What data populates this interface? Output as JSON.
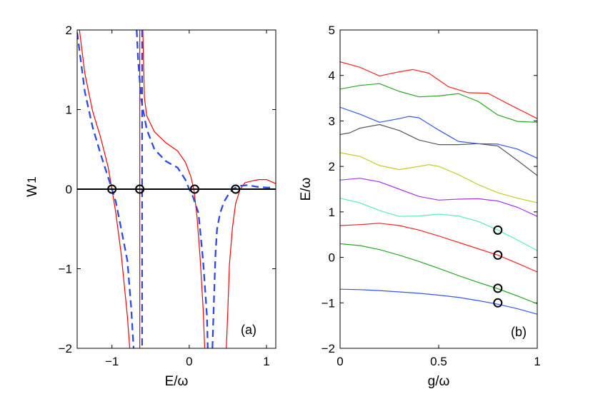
{
  "chart_data": [
    {
      "type": "line",
      "panel_label": "(a)",
      "xlabel": "E/ω",
      "ylabel": "W",
      "ylabel_sub": "1",
      "xlim": [
        -1.45,
        1.12
      ],
      "ylim": [
        -2,
        2
      ],
      "xticks": [
        -1,
        0,
        1
      ],
      "xtick_labels": [
        "−1",
        "0",
        "1"
      ],
      "yticks": [
        -2,
        -1,
        0,
        1,
        2
      ],
      "ytick_labels": [
        "−2",
        "−1",
        "0",
        "1",
        "2"
      ],
      "series": [
        {
          "name": "solid",
          "color": "#ff0000",
          "style": "solid",
          "segments": [
            [
              [
                -1.42,
                2
              ],
              [
                -1.35,
                1.45
              ],
              [
                -1.25,
                0.98
              ],
              [
                -1.15,
                0.66
              ],
              [
                -1.05,
                0.28
              ],
              [
                -1.0,
                0.0
              ],
              [
                -0.95,
                -0.3
              ],
              [
                -0.88,
                -0.82
              ],
              [
                -0.8,
                -1.6
              ],
              [
                -0.77,
                -2
              ]
            ],
            [
              [
                -0.6,
                2
              ],
              [
                -0.58,
                1.15
              ],
              [
                -0.55,
                0.92
              ],
              [
                -0.45,
                0.72
              ],
              [
                -0.3,
                0.58
              ],
              [
                -0.15,
                0.48
              ],
              [
                -0.05,
                0.34
              ],
              [
                0.02,
                0.16
              ],
              [
                0.06,
                0.0
              ],
              [
                0.1,
                -0.34
              ],
              [
                0.14,
                -0.85
              ],
              [
                0.18,
                -1.5
              ],
              [
                0.2,
                -2
              ]
            ],
            [
              [
                0.48,
                -2
              ],
              [
                0.5,
                -1.52
              ],
              [
                0.52,
                -0.95
              ],
              [
                0.56,
                -0.48
              ],
              [
                0.6,
                -0.18
              ],
              [
                0.66,
                0.0
              ],
              [
                0.72,
                0.08
              ],
              [
                0.8,
                0.1
              ],
              [
                0.9,
                0.12
              ],
              [
                1.0,
                0.12
              ],
              [
                1.12,
                0.07
              ]
            ]
          ]
        },
        {
          "name": "dashed",
          "color": "#2a4bea",
          "style": "dashed",
          "segments": [
            [
              [
                -1.45,
                1.97
              ],
              [
                -1.35,
                1.22
              ],
              [
                -1.25,
                0.78
              ],
              [
                -1.15,
                0.45
              ],
              [
                -1.05,
                0.15
              ],
              [
                -1.0,
                0.0
              ],
              [
                -0.95,
                -0.16
              ],
              [
                -0.88,
                -0.5
              ],
              [
                -0.8,
                -0.9
              ],
              [
                -0.75,
                -1.5
              ],
              [
                -0.72,
                -2
              ]
            ],
            [
              [
                -0.68,
                2
              ],
              [
                -0.66,
                1.6
              ],
              [
                -0.62,
                1.12
              ],
              [
                -0.55,
                0.75
              ],
              [
                -0.45,
                0.5
              ],
              [
                -0.3,
                0.35
              ],
              [
                -0.15,
                0.27
              ],
              [
                -0.05,
                0.12
              ],
              [
                0.0,
                0.0
              ],
              [
                0.05,
                -0.1
              ],
              [
                0.12,
                -0.3
              ],
              [
                0.18,
                -0.9
              ],
              [
                0.23,
                -1.6
              ],
              [
                0.24,
                -2
              ]
            ],
            [
              [
                0.3,
                -2
              ],
              [
                0.32,
                -1.38
              ],
              [
                0.34,
                -0.82
              ],
              [
                0.36,
                -0.5
              ],
              [
                0.4,
                -0.3
              ],
              [
                0.45,
                -0.16
              ],
              [
                0.5,
                -0.08
              ],
              [
                0.56,
                0.0
              ],
              [
                0.65,
                0.04
              ],
              [
                0.75,
                0.05
              ],
              [
                0.88,
                0.03
              ],
              [
                1.0,
                0.02
              ],
              [
                1.1,
                0.02
              ]
            ]
          ]
        },
        {
          "name": "solid-vertical",
          "color": "#ff0000",
          "style": "solid",
          "segments": [
            [
              [
                -0.64,
                2
              ],
              [
                -0.64,
                -2
              ]
            ]
          ]
        },
        {
          "name": "dashed-vertical",
          "color": "#2a4bea",
          "style": "dashed",
          "segments": [
            [
              [
                -0.61,
                2
              ],
              [
                -0.61,
                -2
              ]
            ]
          ]
        },
        {
          "name": "zero-line",
          "color": "#000000",
          "style": "solid",
          "segments": [
            [
              [
                -1.45,
                0
              ],
              [
                1.12,
                0
              ]
            ]
          ]
        }
      ],
      "markers": [
        [
          -1.0,
          0
        ],
        [
          -0.64,
          0
        ],
        [
          0.07,
          0
        ],
        [
          0.6,
          0
        ]
      ]
    },
    {
      "type": "line",
      "panel_label": "(b)",
      "xlabel": "g/ω",
      "ylabel": "E/ω",
      "xlim": [
        0,
        1
      ],
      "ylim": [
        -2,
        5
      ],
      "xticks": [
        0,
        0.5,
        1
      ],
      "xtick_labels": [
        "0",
        "0.5",
        "1"
      ],
      "yticks": [
        -2,
        -1,
        0,
        1,
        2,
        3,
        4,
        5
      ],
      "ytick_labels": [
        "−2",
        "−1",
        "0",
        "1",
        "2",
        "3",
        "4",
        "5"
      ],
      "series": [
        {
          "name": "level-1",
          "color": "#3355ee",
          "points": [
            [
              0,
              -0.7
            ],
            [
              0.1,
              -0.71
            ],
            [
              0.2,
              -0.73
            ],
            [
              0.3,
              -0.76
            ],
            [
              0.4,
              -0.79
            ],
            [
              0.5,
              -0.83
            ],
            [
              0.6,
              -0.88
            ],
            [
              0.7,
              -0.95
            ],
            [
              0.8,
              -1.03
            ],
            [
              0.9,
              -1.13
            ],
            [
              1.0,
              -1.25
            ]
          ]
        },
        {
          "name": "level-2",
          "color": "#22aa22",
          "points": [
            [
              0,
              0.3
            ],
            [
              0.1,
              0.26
            ],
            [
              0.2,
              0.17
            ],
            [
              0.3,
              0.05
            ],
            [
              0.4,
              -0.09
            ],
            [
              0.5,
              -0.24
            ],
            [
              0.6,
              -0.4
            ],
            [
              0.7,
              -0.55
            ],
            [
              0.8,
              -0.69
            ],
            [
              0.9,
              -0.85
            ],
            [
              1.0,
              -1.02
            ]
          ]
        },
        {
          "name": "level-3",
          "color": "#ff2222",
          "points": [
            [
              0,
              0.7
            ],
            [
              0.1,
              0.72
            ],
            [
              0.2,
              0.75
            ],
            [
              0.3,
              0.7
            ],
            [
              0.4,
              0.6
            ],
            [
              0.5,
              0.47
            ],
            [
              0.6,
              0.33
            ],
            [
              0.7,
              0.19
            ],
            [
              0.8,
              0.05
            ],
            [
              0.9,
              -0.13
            ],
            [
              1.0,
              -0.32
            ]
          ]
        },
        {
          "name": "level-4",
          "color": "#55eebb",
          "points": [
            [
              0,
              1.3
            ],
            [
              0.1,
              1.2
            ],
            [
              0.2,
              1.03
            ],
            [
              0.3,
              0.9
            ],
            [
              0.4,
              0.91
            ],
            [
              0.5,
              0.95
            ],
            [
              0.6,
              0.91
            ],
            [
              0.7,
              0.79
            ],
            [
              0.8,
              0.6
            ],
            [
              0.9,
              0.38
            ],
            [
              1.0,
              0.15
            ]
          ]
        },
        {
          "name": "level-5",
          "color": "#aa33ee",
          "points": [
            [
              0,
              1.7
            ],
            [
              0.1,
              1.74
            ],
            [
              0.2,
              1.66
            ],
            [
              0.3,
              1.5
            ],
            [
              0.4,
              1.34
            ],
            [
              0.5,
              1.26
            ],
            [
              0.6,
              1.28
            ],
            [
              0.7,
              1.29
            ],
            [
              0.8,
              1.24
            ],
            [
              0.9,
              1.1
            ],
            [
              1.0,
              0.9
            ]
          ]
        },
        {
          "name": "level-6",
          "color": "#c8cc22",
          "points": [
            [
              0,
              2.3
            ],
            [
              0.1,
              2.22
            ],
            [
              0.2,
              2.02
            ],
            [
              0.3,
              1.93
            ],
            [
              0.4,
              2.0
            ],
            [
              0.45,
              2.04
            ],
            [
              0.5,
              2.0
            ],
            [
              0.6,
              1.82
            ],
            [
              0.7,
              1.6
            ],
            [
              0.8,
              1.42
            ],
            [
              0.9,
              1.3
            ],
            [
              1.0,
              1.2
            ]
          ]
        },
        {
          "name": "level-7",
          "color": "#555555",
          "points": [
            [
              0,
              2.7
            ],
            [
              0.05,
              2.74
            ],
            [
              0.1,
              2.84
            ],
            [
              0.2,
              2.92
            ],
            [
              0.3,
              2.79
            ],
            [
              0.4,
              2.58
            ],
            [
              0.5,
              2.48
            ],
            [
              0.6,
              2.48
            ],
            [
              0.7,
              2.5
            ],
            [
              0.8,
              2.45
            ],
            [
              0.9,
              2.13
            ],
            [
              1.0,
              1.8
            ]
          ]
        },
        {
          "name": "level-8",
          "color": "#3355ee",
          "points": [
            [
              0,
              3.3
            ],
            [
              0.1,
              3.15
            ],
            [
              0.2,
              2.97
            ],
            [
              0.3,
              3.05
            ],
            [
              0.35,
              3.1
            ],
            [
              0.4,
              3.07
            ],
            [
              0.5,
              2.8
            ],
            [
              0.6,
              2.55
            ],
            [
              0.7,
              2.5
            ],
            [
              0.8,
              2.49
            ],
            [
              0.9,
              2.38
            ],
            [
              1.0,
              2.18
            ]
          ]
        },
        {
          "name": "level-9",
          "color": "#22aa22",
          "points": [
            [
              0,
              3.7
            ],
            [
              0.1,
              3.78
            ],
            [
              0.2,
              3.82
            ],
            [
              0.3,
              3.65
            ],
            [
              0.4,
              3.53
            ],
            [
              0.5,
              3.55
            ],
            [
              0.6,
              3.6
            ],
            [
              0.7,
              3.43
            ],
            [
              0.8,
              3.13
            ],
            [
              0.9,
              2.99
            ],
            [
              1.0,
              2.97
            ]
          ]
        },
        {
          "name": "level-10",
          "color": "#ff2222",
          "points": [
            [
              0,
              4.3
            ],
            [
              0.1,
              4.18
            ],
            [
              0.2,
              3.99
            ],
            [
              0.3,
              4.08
            ],
            [
              0.37,
              4.13
            ],
            [
              0.45,
              4.05
            ],
            [
              0.55,
              3.75
            ],
            [
              0.65,
              3.62
            ],
            [
              0.75,
              3.61
            ],
            [
              0.85,
              3.38
            ],
            [
              1.0,
              3.05
            ]
          ]
        }
      ],
      "markers": [
        [
          0.8,
          0.6
        ],
        [
          0.8,
          0.05
        ],
        [
          0.8,
          -0.68
        ],
        [
          0.8,
          -1.0
        ]
      ]
    }
  ]
}
